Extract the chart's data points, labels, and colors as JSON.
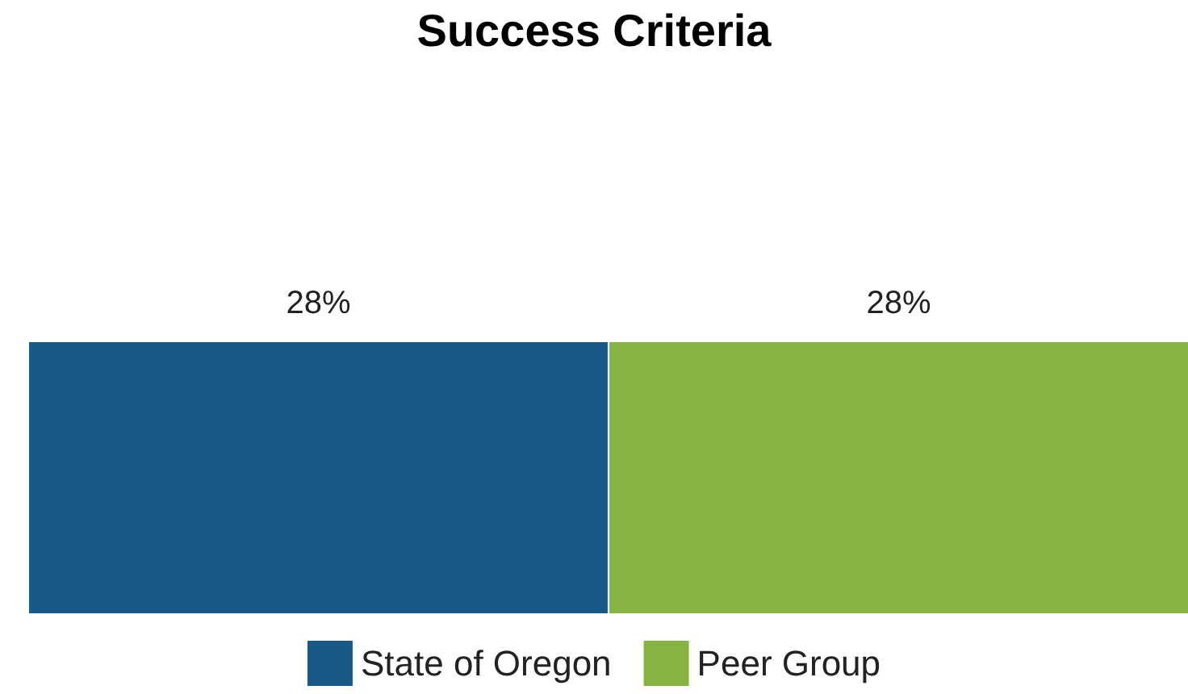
{
  "chart_data": {
    "type": "bar",
    "title": "Success Criteria",
    "categories": [
      null
    ],
    "series": [
      {
        "name": "State of Oregon",
        "color": "#175a8a",
        "values": [
          28
        ],
        "value_labels": [
          "28%"
        ]
      },
      {
        "name": "Peer Group",
        "color": "#86b342",
        "values": [
          28
        ],
        "value_labels": [
          "28%"
        ]
      }
    ],
    "legend": "bottom"
  }
}
